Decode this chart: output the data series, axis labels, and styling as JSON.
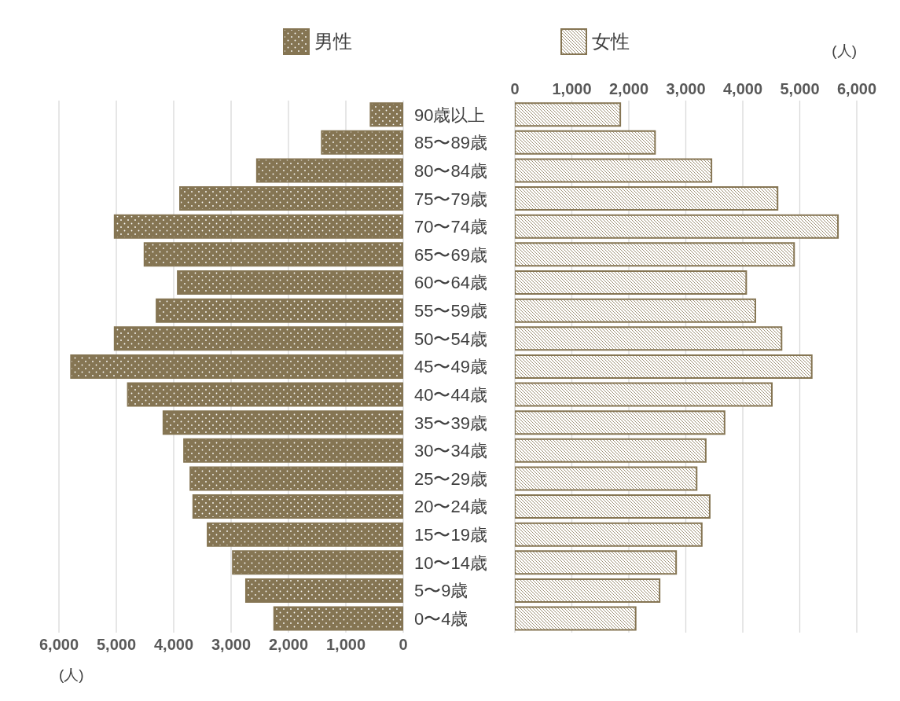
{
  "chart_data": [
    {
      "type": "bar",
      "orientation": "horizontal",
      "categories": [
        "90歳以上",
        "85〜89歳",
        "80〜84歳",
        "75〜79歳",
        "70〜74歳",
        "65〜69歳",
        "60〜64歳",
        "55〜59歳",
        "50〜54歳",
        "45〜49歳",
        "40〜44歳",
        "35〜39歳",
        "30〜34歳",
        "25〜29歳",
        "20〜24歳",
        "15〜19歳",
        "10〜14歳",
        "5〜9歳",
        "0〜4歳"
      ],
      "series": [
        {
          "name": "男性",
          "color": "#857553",
          "values": [
            570,
            1420,
            2550,
            3890,
            5030,
            4510,
            3930,
            4300,
            5030,
            5790,
            4800,
            4180,
            3820,
            3710,
            3660,
            3410,
            2970,
            2740,
            2250
          ]
        }
      ],
      "xlim": [
        6000,
        0
      ],
      "xticks": [
        {
          "value": 6000,
          "label": "6,000"
        },
        {
          "value": 5000,
          "label": "5,000"
        },
        {
          "value": 4000,
          "label": "4,000"
        },
        {
          "value": 3000,
          "label": "3,000"
        },
        {
          "value": 2000,
          "label": "2,000"
        },
        {
          "value": 1000,
          "label": "1,000"
        },
        0
      ],
      "xlabel": "(人)",
      "grid": "x",
      "legend": "top"
    },
    {
      "type": "bar",
      "orientation": "horizontal",
      "series": [
        {
          "name": "女性",
          "color": "#857553",
          "values": [
            1850,
            2460,
            3450,
            4610,
            5670,
            4900,
            4060,
            4220,
            4680,
            5210,
            4510,
            3680,
            3350,
            3190,
            3420,
            3280,
            2830,
            2540,
            2120
          ]
        }
      ],
      "xlim": [
        0,
        6000
      ],
      "xticks": [
        0,
        {
          "value": 1000,
          "label": "1,000"
        },
        {
          "value": 2000,
          "label": "2,000"
        },
        {
          "value": 3000,
          "label": "3,000"
        },
        {
          "value": 4000,
          "label": "4,000"
        },
        {
          "value": 5000,
          "label": "5,000"
        },
        {
          "value": 6000,
          "label": "6,000"
        }
      ],
      "xlabel": "(人)",
      "grid": "x",
      "legend": "top",
      "tick_labels": "x"
    }
  ]
}
